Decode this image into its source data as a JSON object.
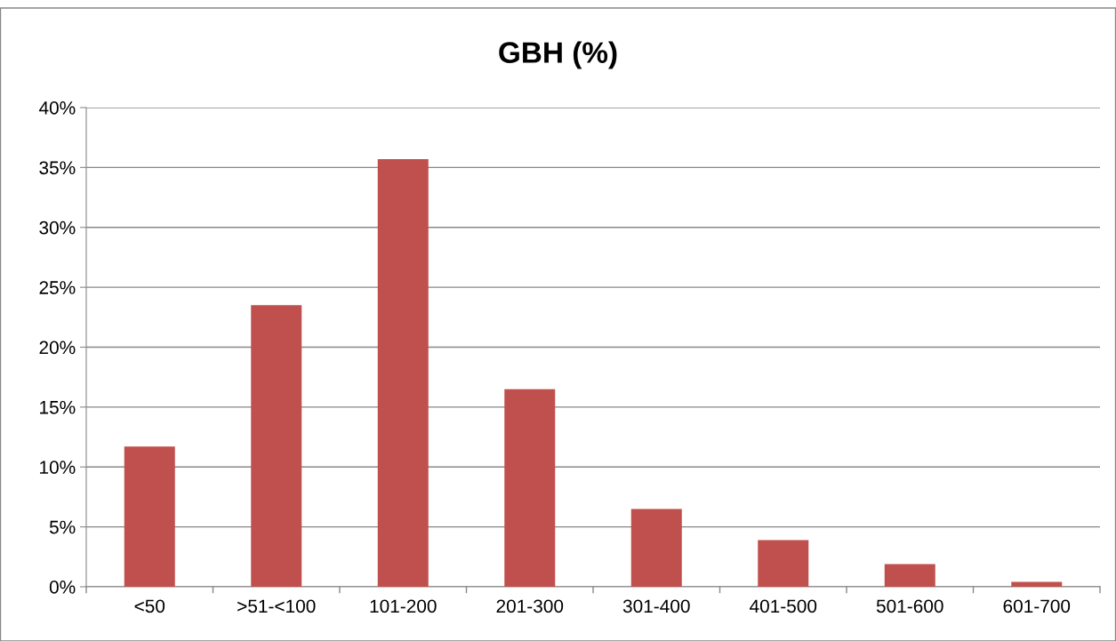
{
  "chart_data": {
    "type": "bar",
    "title": "GBH (%)",
    "categories": [
      "<50",
      ">51-<100",
      "101-200",
      "201-300",
      "301-400",
      "401-500",
      "501-600",
      "601-700"
    ],
    "values": [
      11.7,
      23.5,
      35.7,
      16.5,
      6.5,
      3.9,
      1.9,
      0.4
    ],
    "color": "#c0504d",
    "ylim": [
      0,
      40
    ],
    "yticks": [
      {
        "value": 0,
        "label": "0%"
      },
      {
        "value": 5,
        "label": "5%"
      },
      {
        "value": 10,
        "label": "10%"
      },
      {
        "value": 15,
        "label": "15%"
      },
      {
        "value": 20,
        "label": "20%"
      },
      {
        "value": 25,
        "label": "25%"
      },
      {
        "value": 30,
        "label": "30%"
      },
      {
        "value": 35,
        "label": "35%"
      },
      {
        "value": 40,
        "label": "40%"
      }
    ],
    "grid": "y",
    "legend": false
  }
}
